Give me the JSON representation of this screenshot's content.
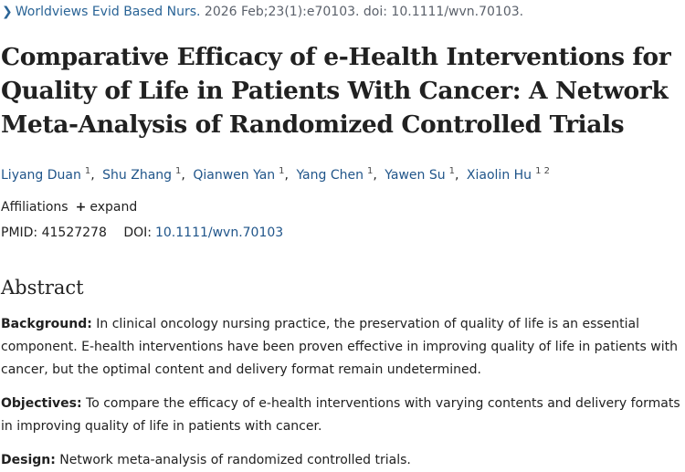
{
  "citation": {
    "journal": "Worldviews Evid Based Nurs.",
    "details": "2026 Feb;23(1):e70103. doi: 10.1111/wvn.70103."
  },
  "title": "Comparative Efficacy of e-Health Interventions for Quality of Life in Patients With Cancer: A Network Meta-Analysis of Randomized Controlled Trials",
  "authors": [
    {
      "name": "Liyang Duan",
      "aff": "1"
    },
    {
      "name": "Shu Zhang",
      "aff": "1"
    },
    {
      "name": "Qianwen Yan",
      "aff": "1"
    },
    {
      "name": "Yang Chen",
      "aff": "1"
    },
    {
      "name": "Yawen Su",
      "aff": "1"
    },
    {
      "name": "Xiaolin Hu",
      "aff": "1 2"
    }
  ],
  "affiliations": {
    "label": "Affiliations",
    "toggle_icon": "+",
    "toggle": "expand"
  },
  "identifiers": {
    "pmid_label": "PMID:",
    "pmid": "41527278",
    "doi_label": "DOI:",
    "doi": "10.1111/wvn.70103"
  },
  "abstract": {
    "heading": "Abstract",
    "background_label": "Background:",
    "background_text": "In clinical oncology nursing practice, the preservation of quality of life is an essential component. E-health interventions have been proven effective in improving quality of life in patients with cancer, but the optimal content and delivery format remain undetermined.",
    "objectives_label": "Objectives:",
    "objectives_text": "To compare the efficacy of e-health interventions with varying contents and delivery formats in improving quality of life in patients with cancer.",
    "design_label": "Design:",
    "design_text": "Network meta-analysis of randomized controlled trials."
  },
  "colors": {
    "link": "#20558a",
    "text": "#212121"
  }
}
